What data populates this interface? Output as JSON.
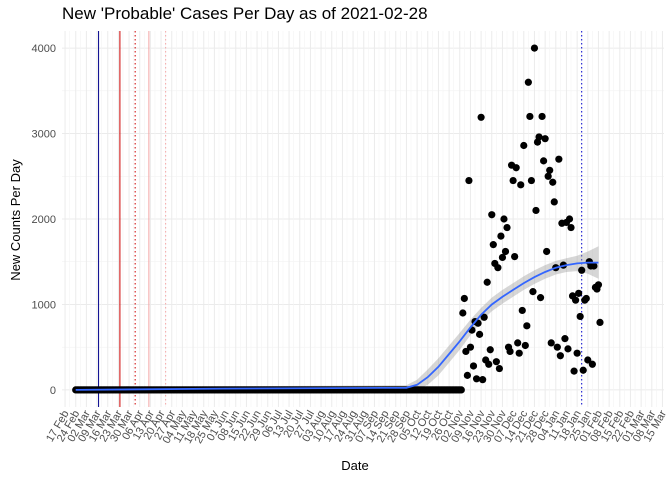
{
  "chart_data": {
    "type": "scatter",
    "title": "New 'Probable' Cases Per Day as of 2021-02-28",
    "xlabel": "Date",
    "ylabel": "New Counts Per Day",
    "x_range": [
      "2020-02-15",
      "2021-03-16"
    ],
    "ylim": [
      -200,
      4200
    ],
    "y_ticks": [
      0,
      1000,
      2000,
      3000,
      4000
    ],
    "x_tick_labels": [
      "17 Feb",
      "24 Feb",
      "02 Mar",
      "09 Mar",
      "16 Mar",
      "23 Mar",
      "30 Mar",
      "06 Apr",
      "13 Apr",
      "20 Apr",
      "27 Apr",
      "04 May",
      "11 May",
      "18 May",
      "25 May",
      "01 Jun",
      "08 Jun",
      "15 Jun",
      "22 Jun",
      "29 Jun",
      "06 Jul",
      "13 Jul",
      "20 Jul",
      "27 Jul",
      "03 Aug",
      "10 Aug",
      "17 Aug",
      "24 Aug",
      "31 Aug",
      "07 Sep",
      "14 Sep",
      "21 Sep",
      "28 Sep",
      "05 Oct",
      "12 Oct",
      "19 Oct",
      "26 Oct",
      "02 Nov",
      "09 Nov",
      "16 Nov",
      "23 Nov",
      "30 Nov",
      "07 Dec",
      "14 Dec",
      "21 Dec",
      "28 Dec",
      "04 Jan",
      "11 Jan",
      "18 Jan",
      "25 Jan",
      "01 Feb",
      "08 Feb",
      "15 Feb",
      "22 Feb",
      "01 Mar",
      "08 Mar",
      "15 Mar"
    ],
    "x_tick_dates": [
      "2020-02-17",
      "2020-02-24",
      "2020-03-02",
      "2020-03-09",
      "2020-03-16",
      "2020-03-23",
      "2020-03-30",
      "2020-04-06",
      "2020-04-13",
      "2020-04-20",
      "2020-04-27",
      "2020-05-04",
      "2020-05-11",
      "2020-05-18",
      "2020-05-25",
      "2020-06-01",
      "2020-06-08",
      "2020-06-15",
      "2020-06-22",
      "2020-06-29",
      "2020-07-06",
      "2020-07-13",
      "2020-07-20",
      "2020-07-27",
      "2020-08-03",
      "2020-08-10",
      "2020-08-17",
      "2020-08-24",
      "2020-08-31",
      "2020-09-07",
      "2020-09-14",
      "2020-09-21",
      "2020-09-28",
      "2020-10-05",
      "2020-10-12",
      "2020-10-19",
      "2020-10-26",
      "2020-11-02",
      "2020-11-09",
      "2020-11-16",
      "2020-11-23",
      "2020-11-30",
      "2020-12-07",
      "2020-12-14",
      "2020-12-21",
      "2020-12-28",
      "2021-01-04",
      "2021-01-11",
      "2021-01-18",
      "2021-01-25",
      "2021-02-01",
      "2021-02-08",
      "2021-02-15",
      "2021-02-22",
      "2021-03-01",
      "2021-03-08",
      "2021-03-15"
    ],
    "grid": true,
    "background": "#ffffff",
    "zero_series": {
      "start": "2020-02-24",
      "end": "2020-11-03",
      "value": 0
    },
    "points": [
      {
        "x": "2020-11-04",
        "y": 900
      },
      {
        "x": "2020-11-05",
        "y": 1070
      },
      {
        "x": "2020-11-06",
        "y": 450
      },
      {
        "x": "2020-11-07",
        "y": 170
      },
      {
        "x": "2020-11-08",
        "y": 2450
      },
      {
        "x": "2020-11-09",
        "y": 500
      },
      {
        "x": "2020-11-10",
        "y": 700
      },
      {
        "x": "2020-11-11",
        "y": 280
      },
      {
        "x": "2020-11-12",
        "y": 800
      },
      {
        "x": "2020-11-13",
        "y": 130
      },
      {
        "x": "2020-11-14",
        "y": 780
      },
      {
        "x": "2020-11-15",
        "y": 650
      },
      {
        "x": "2020-11-16",
        "y": 3190
      },
      {
        "x": "2020-11-17",
        "y": 120
      },
      {
        "x": "2020-11-18",
        "y": 850
      },
      {
        "x": "2020-11-19",
        "y": 350
      },
      {
        "x": "2020-11-20",
        "y": 1260
      },
      {
        "x": "2020-11-21",
        "y": 300
      },
      {
        "x": "2020-11-22",
        "y": 470
      },
      {
        "x": "2020-11-23",
        "y": 2050
      },
      {
        "x": "2020-11-24",
        "y": 1700
      },
      {
        "x": "2020-11-25",
        "y": 1480
      },
      {
        "x": "2020-11-26",
        "y": 330
      },
      {
        "x": "2020-11-27",
        "y": 1430
      },
      {
        "x": "2020-11-28",
        "y": 250
      },
      {
        "x": "2020-11-29",
        "y": 1800
      },
      {
        "x": "2020-11-30",
        "y": 1550
      },
      {
        "x": "2020-12-01",
        "y": 2000
      },
      {
        "x": "2020-12-02",
        "y": 1620
      },
      {
        "x": "2020-12-03",
        "y": 1900
      },
      {
        "x": "2020-12-04",
        "y": 500
      },
      {
        "x": "2020-12-05",
        "y": 450
      },
      {
        "x": "2020-12-06",
        "y": 2630
      },
      {
        "x": "2020-12-07",
        "y": 2450
      },
      {
        "x": "2020-12-08",
        "y": 1560
      },
      {
        "x": "2020-12-09",
        "y": 2600
      },
      {
        "x": "2020-12-10",
        "y": 550
      },
      {
        "x": "2020-12-11",
        "y": 430
      },
      {
        "x": "2020-12-12",
        "y": 2400
      },
      {
        "x": "2020-12-13",
        "y": 930
      },
      {
        "x": "2020-12-14",
        "y": 2860
      },
      {
        "x": "2020-12-15",
        "y": 520
      },
      {
        "x": "2020-12-16",
        "y": 750
      },
      {
        "x": "2020-12-17",
        "y": 3600
      },
      {
        "x": "2020-12-18",
        "y": 3200
      },
      {
        "x": "2020-12-19",
        "y": 2450
      },
      {
        "x": "2020-12-20",
        "y": 1150
      },
      {
        "x": "2020-12-21",
        "y": 4000
      },
      {
        "x": "2020-12-22",
        "y": 2100
      },
      {
        "x": "2020-12-23",
        "y": 2900
      },
      {
        "x": "2020-12-24",
        "y": 2960
      },
      {
        "x": "2020-12-25",
        "y": 1080
      },
      {
        "x": "2020-12-26",
        "y": 3200
      },
      {
        "x": "2020-12-27",
        "y": 2680
      },
      {
        "x": "2020-12-28",
        "y": 2940
      },
      {
        "x": "2020-12-29",
        "y": 1620
      },
      {
        "x": "2020-12-30",
        "y": 2500
      },
      {
        "x": "2020-12-31",
        "y": 2570
      },
      {
        "x": "2021-01-01",
        "y": 550
      },
      {
        "x": "2021-01-02",
        "y": 2430
      },
      {
        "x": "2021-01-03",
        "y": 2200
      },
      {
        "x": "2021-01-04",
        "y": 1430
      },
      {
        "x": "2021-01-05",
        "y": 500
      },
      {
        "x": "2021-01-06",
        "y": 2700
      },
      {
        "x": "2021-01-07",
        "y": 400
      },
      {
        "x": "2021-01-08",
        "y": 1950
      },
      {
        "x": "2021-01-09",
        "y": 1460
      },
      {
        "x": "2021-01-10",
        "y": 600
      },
      {
        "x": "2021-01-11",
        "y": 1960
      },
      {
        "x": "2021-01-12",
        "y": 480
      },
      {
        "x": "2021-01-13",
        "y": 2000
      },
      {
        "x": "2021-01-14",
        "y": 1900
      },
      {
        "x": "2021-01-15",
        "y": 1100
      },
      {
        "x": "2021-01-16",
        "y": 220
      },
      {
        "x": "2021-01-17",
        "y": 1050
      },
      {
        "x": "2021-01-18",
        "y": 430
      },
      {
        "x": "2021-01-19",
        "y": 1130
      },
      {
        "x": "2021-01-20",
        "y": 860
      },
      {
        "x": "2021-01-21",
        "y": 1400
      },
      {
        "x": "2021-01-22",
        "y": 230
      },
      {
        "x": "2021-01-23",
        "y": 1050
      },
      {
        "x": "2021-01-24",
        "y": 1070
      },
      {
        "x": "2021-01-25",
        "y": 350
      },
      {
        "x": "2021-01-26",
        "y": 1500
      },
      {
        "x": "2021-01-27",
        "y": 1450
      },
      {
        "x": "2021-01-28",
        "y": 300
      },
      {
        "x": "2021-01-29",
        "y": 1450
      },
      {
        "x": "2021-01-30",
        "y": 1200
      },
      {
        "x": "2021-01-31",
        "y": 1180
      },
      {
        "x": "2021-02-01",
        "y": 1230
      },
      {
        "x": "2021-02-02",
        "y": 790
      }
    ],
    "smooth_line": {
      "color": "#3366ff",
      "points": [
        [
          "2020-02-24",
          0
        ],
        [
          "2020-06-01",
          15
        ],
        [
          "2020-09-28",
          25
        ],
        [
          "2020-10-05",
          60
        ],
        [
          "2020-10-12",
          150
        ],
        [
          "2020-10-19",
          270
        ],
        [
          "2020-10-26",
          420
        ],
        [
          "2020-11-02",
          570
        ],
        [
          "2020-11-09",
          730
        ],
        [
          "2020-11-16",
          880
        ],
        [
          "2020-11-23",
          1000
        ],
        [
          "2020-11-30",
          1090
        ],
        [
          "2020-12-07",
          1170
        ],
        [
          "2020-12-14",
          1250
        ],
        [
          "2020-12-21",
          1320
        ],
        [
          "2020-12-28",
          1380
        ],
        [
          "2021-01-04",
          1430
        ],
        [
          "2021-01-11",
          1460
        ],
        [
          "2021-01-18",
          1480
        ],
        [
          "2021-01-25",
          1490
        ],
        [
          "2021-02-01",
          1490
        ]
      ],
      "band_lower": [
        [
          "2020-02-24",
          -20
        ],
        [
          "2020-09-28",
          -5
        ],
        [
          "2020-10-05",
          0
        ],
        [
          "2020-10-12",
          60
        ],
        [
          "2020-10-19",
          170
        ],
        [
          "2020-10-26",
          320
        ],
        [
          "2020-11-02",
          470
        ],
        [
          "2020-11-09",
          640
        ],
        [
          "2020-11-16",
          800
        ],
        [
          "2020-11-23",
          920
        ],
        [
          "2020-11-30",
          1010
        ],
        [
          "2020-12-07",
          1090
        ],
        [
          "2020-12-14",
          1170
        ],
        [
          "2020-12-21",
          1240
        ],
        [
          "2020-12-28",
          1300
        ],
        [
          "2021-01-04",
          1350
        ],
        [
          "2021-01-11",
          1380
        ],
        [
          "2021-01-18",
          1390
        ],
        [
          "2021-01-25",
          1360
        ],
        [
          "2021-02-01",
          1300
        ]
      ],
      "band_upper": [
        [
          "2020-02-24",
          30
        ],
        [
          "2020-09-28",
          55
        ],
        [
          "2020-10-05",
          120
        ],
        [
          "2020-10-12",
          240
        ],
        [
          "2020-10-19",
          370
        ],
        [
          "2020-10-26",
          520
        ],
        [
          "2020-11-02",
          670
        ],
        [
          "2020-11-09",
          820
        ],
        [
          "2020-11-16",
          960
        ],
        [
          "2020-11-23",
          1080
        ],
        [
          "2020-11-30",
          1170
        ],
        [
          "2020-12-07",
          1250
        ],
        [
          "2020-12-14",
          1330
        ],
        [
          "2020-12-21",
          1400
        ],
        [
          "2020-12-28",
          1460
        ],
        [
          "2021-01-04",
          1510
        ],
        [
          "2021-01-11",
          1540
        ],
        [
          "2021-01-18",
          1570
        ],
        [
          "2021-01-25",
          1620
        ],
        [
          "2021-02-01",
          1680
        ]
      ]
    },
    "vlines": [
      {
        "x": "2020-03-10",
        "color": "#00008b",
        "style": "solid"
      },
      {
        "x": "2020-03-24",
        "color": "#cc0000",
        "style": "solid"
      },
      {
        "x": "2020-04-03",
        "color": "#cc0000",
        "style": "dotted"
      },
      {
        "x": "2020-04-12",
        "color": "#f4a6a6",
        "style": "solid"
      },
      {
        "x": "2020-04-23",
        "color": "#f4a6a6",
        "style": "dotted"
      },
      {
        "x": "2021-01-21",
        "color": "#0000cd",
        "style": "dotted"
      }
    ]
  }
}
